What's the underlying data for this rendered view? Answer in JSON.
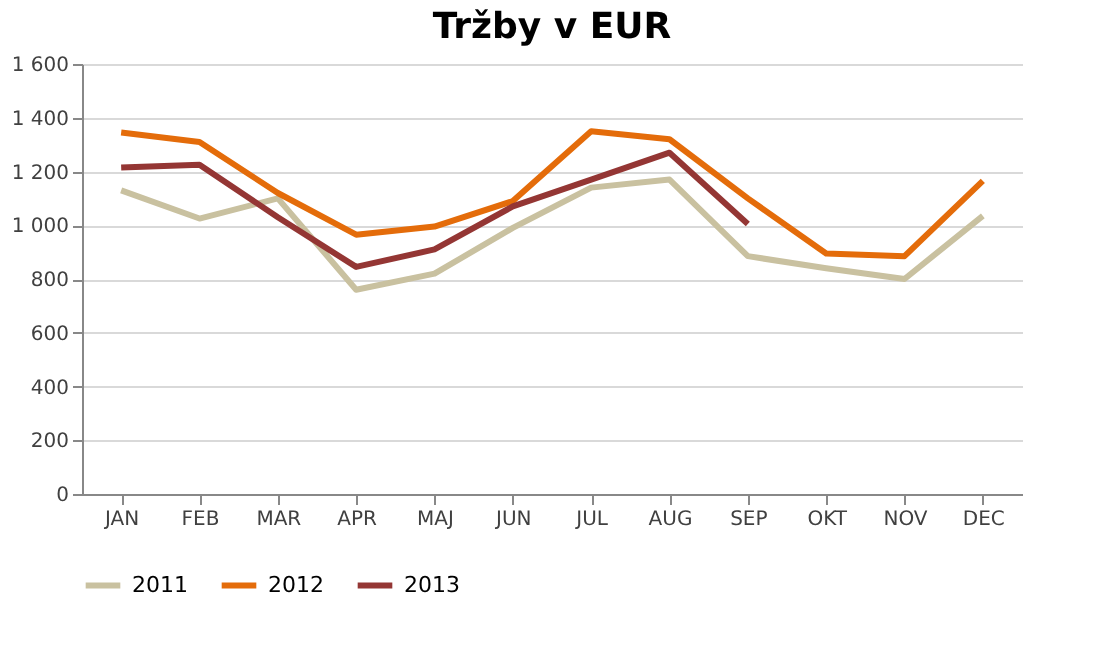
{
  "chart_data": {
    "type": "line",
    "title": "Tržby v EUR",
    "categories": [
      "JAN",
      "FEB",
      "MAR",
      "APR",
      "MAJ",
      "JUN",
      "JUL",
      "AUG",
      "SEP",
      "OKT",
      "NOV",
      "DEC"
    ],
    "series": [
      {
        "name": "2011",
        "color": "#c9c1a0",
        "values": [
          1130,
          1025,
          1100,
          760,
          820,
          990,
          1140,
          1170,
          885,
          840,
          800,
          1035
        ]
      },
      {
        "name": "2012",
        "color": "#e46c0a",
        "values": [
          1345,
          1310,
          1120,
          965,
          995,
          1090,
          1350,
          1320,
          1100,
          895,
          885,
          1165
        ]
      },
      {
        "name": "2013",
        "color": "#943634",
        "values": [
          1215,
          1225,
          1030,
          845,
          910,
          1070,
          1170,
          1270,
          1005,
          null,
          null,
          null
        ]
      }
    ],
    "ylim": [
      0,
      1600
    ],
    "yticks": [
      0,
      200,
      400,
      600,
      800,
      {
        "value": 1000,
        "label": "1 000"
      },
      {
        "value": 1200,
        "label": "1 200"
      },
      {
        "value": 1400,
        "label": "1 400"
      },
      {
        "value": 1600,
        "label": "1 600"
      }
    ],
    "grid": "y",
    "legend": "bottom",
    "marker": "none",
    "line_style": "solid"
  }
}
